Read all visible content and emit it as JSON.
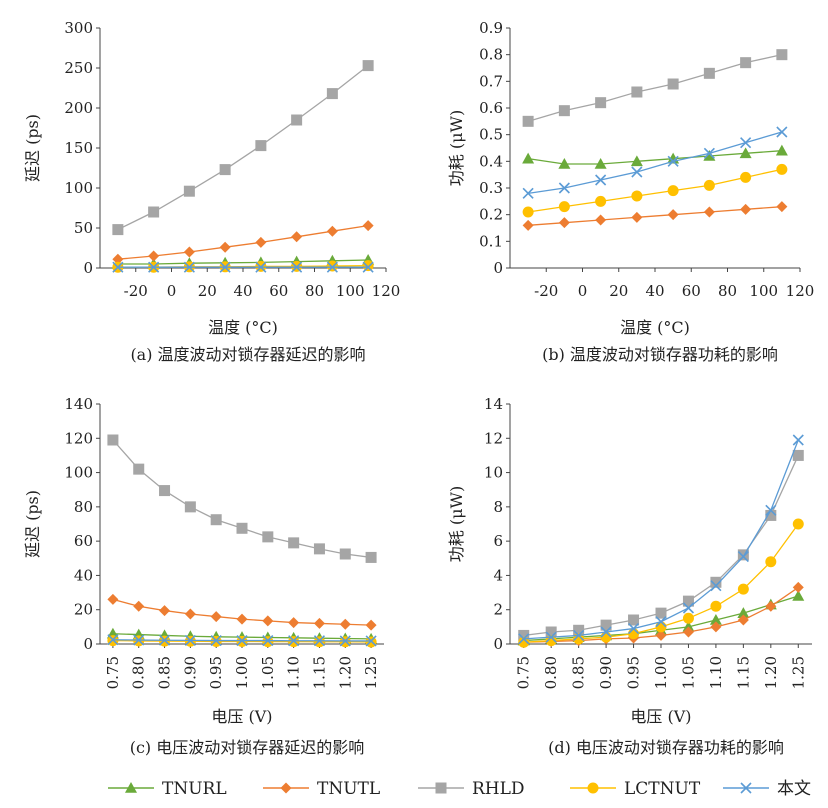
{
  "series_styles": [
    {
      "name": "TNURL",
      "color": "#6aaa3a",
      "marker": "triangle"
    },
    {
      "name": "TNUTL",
      "color": "#ed7d31",
      "marker": "diamond"
    },
    {
      "name": "RHLD",
      "color": "#a5a5a5",
      "marker": "square"
    },
    {
      "name": "LCTNUT",
      "color": "#ffc000",
      "marker": "circle"
    },
    {
      "name": "本文",
      "color": "#5b9bd5",
      "marker": "cross"
    }
  ],
  "chart_data": [
    {
      "type": "line",
      "caption": "(a) 温度波动对锁存器延迟的影响",
      "xlabel": "温度 (°C)",
      "ylabel": "延迟 (ps)",
      "xlim": [
        -40,
        120
      ],
      "ylim": [
        0,
        300
      ],
      "xticks": [
        -20,
        0,
        20,
        40,
        60,
        80,
        100,
        120
      ],
      "yticks": [
        0,
        50,
        100,
        150,
        200,
        250,
        300
      ],
      "x": [
        -30,
        -10,
        10,
        30,
        50,
        70,
        90,
        110
      ],
      "series": [
        {
          "name": "TNURL",
          "values": [
            5,
            5,
            6,
            6.5,
            7,
            8,
            9,
            10
          ]
        },
        {
          "name": "TNUTL",
          "values": [
            11,
            15,
            20,
            26,
            32,
            39,
            46,
            53
          ]
        },
        {
          "name": "RHLD",
          "values": [
            48,
            70,
            96,
            123,
            153,
            185,
            218,
            253
          ]
        },
        {
          "name": "LCTNUT",
          "values": [
            1,
            1,
            1.5,
            1.5,
            2,
            2,
            2.5,
            3
          ]
        },
        {
          "name": "本文",
          "values": [
            1,
            1,
            1,
            1,
            1,
            1,
            1,
            1
          ]
        }
      ]
    },
    {
      "type": "line",
      "caption": "(b) 温度波动对锁存器功耗的影响",
      "xlabel": "温度 (°C)",
      "ylabel": "功耗 (μW)",
      "xlim": [
        -40,
        120
      ],
      "ylim": [
        0,
        0.9
      ],
      "xticks": [
        -20,
        0,
        20,
        40,
        60,
        80,
        100,
        120
      ],
      "yticks": [
        0,
        0.1,
        0.2,
        0.3,
        0.4,
        0.5,
        0.6,
        0.7,
        0.8,
        0.9
      ],
      "x": [
        -30,
        -10,
        10,
        30,
        50,
        70,
        90,
        110
      ],
      "series": [
        {
          "name": "TNURL",
          "values": [
            0.41,
            0.39,
            0.39,
            0.4,
            0.41,
            0.42,
            0.43,
            0.44
          ]
        },
        {
          "name": "TNUTL",
          "values": [
            0.16,
            0.17,
            0.18,
            0.19,
            0.2,
            0.21,
            0.22,
            0.23
          ]
        },
        {
          "name": "RHLD",
          "values": [
            0.55,
            0.59,
            0.62,
            0.66,
            0.69,
            0.73,
            0.77,
            0.8
          ]
        },
        {
          "name": "LCTNUT",
          "values": [
            0.21,
            0.23,
            0.25,
            0.27,
            0.29,
            0.31,
            0.34,
            0.37
          ]
        },
        {
          "name": "本文",
          "values": [
            0.28,
            0.3,
            0.33,
            0.36,
            0.4,
            0.43,
            0.47,
            0.51
          ]
        }
      ]
    },
    {
      "type": "line",
      "caption": "(c) 电压波动对锁存器延迟的影响",
      "xlabel": "电压 (V)",
      "ylabel": "延迟 (ps)",
      "xlim": [
        0.725,
        1.275
      ],
      "ylim": [
        0,
        140
      ],
      "xtick_labels": [
        "0.75",
        "0.80",
        "0.85",
        "0.90",
        "0.95",
        "1.00",
        "1.05",
        "1.10",
        "1.15",
        "1.20",
        "1.25"
      ],
      "yticks": [
        0,
        20,
        40,
        60,
        80,
        100,
        120,
        140
      ],
      "x": [
        0.75,
        0.8,
        0.85,
        0.9,
        0.95,
        1.0,
        1.05,
        1.1,
        1.15,
        1.2,
        1.25
      ],
      "series": [
        {
          "name": "TNURL",
          "values": [
            6,
            5.5,
            5,
            4.5,
            4.2,
            4,
            3.8,
            3.6,
            3.4,
            3.2,
            3
          ]
        },
        {
          "name": "TNUTL",
          "values": [
            26,
            22,
            19.5,
            17.5,
            16,
            14.5,
            13.5,
            12.5,
            12,
            11.5,
            11
          ]
        },
        {
          "name": "RHLD",
          "values": [
            119,
            102,
            89.5,
            80,
            72.5,
            67.5,
            62.5,
            59,
            55.5,
            52.5,
            50.5
          ]
        },
        {
          "name": "LCTNUT",
          "values": [
            2,
            1.8,
            1.7,
            1.6,
            1.5,
            1.5,
            1.4,
            1.4,
            1.3,
            1.3,
            1.2
          ]
        },
        {
          "name": "本文",
          "values": [
            2.5,
            2.3,
            2.2,
            2.1,
            2,
            2,
            2,
            1.9,
            1.9,
            1.8,
            1.8
          ]
        }
      ]
    },
    {
      "type": "line",
      "caption": "(d) 电压波动对锁存器功耗的影响",
      "xlabel": "电压 (V)",
      "ylabel": "功耗 (μW)",
      "xlim": [
        0.725,
        1.275
      ],
      "ylim": [
        0,
        14
      ],
      "xtick_labels": [
        "0.75",
        "0.80",
        "0.85",
        "0.90",
        "0.95",
        "1.00",
        "1.05",
        "1.10",
        "1.15",
        "1.20",
        "1.25"
      ],
      "yticks": [
        0,
        2,
        4,
        6,
        8,
        10,
        12,
        14
      ],
      "x": [
        0.75,
        0.8,
        0.85,
        0.9,
        0.95,
        1.0,
        1.05,
        1.1,
        1.15,
        1.2,
        1.25
      ],
      "series": [
        {
          "name": "TNURL",
          "values": [
            0.2,
            0.3,
            0.4,
            0.5,
            0.6,
            0.8,
            1.0,
            1.4,
            1.8,
            2.3,
            2.8
          ]
        },
        {
          "name": "TNUTL",
          "values": [
            0.1,
            0.15,
            0.2,
            0.3,
            0.35,
            0.5,
            0.7,
            1.0,
            1.4,
            2.2,
            3.3
          ]
        },
        {
          "name": "RHLD",
          "values": [
            0.5,
            0.7,
            0.8,
            1.1,
            1.4,
            1.8,
            2.5,
            3.6,
            5.2,
            7.5,
            11.0
          ]
        },
        {
          "name": "LCTNUT",
          "values": [
            0.1,
            0.2,
            0.3,
            0.4,
            0.6,
            1.0,
            1.5,
            2.2,
            3.2,
            4.8,
            7.0
          ]
        },
        {
          "name": "本文",
          "values": [
            0.3,
            0.4,
            0.5,
            0.7,
            0.9,
            1.3,
            2.1,
            3.4,
            5.1,
            7.8,
            11.9
          ]
        }
      ]
    }
  ]
}
